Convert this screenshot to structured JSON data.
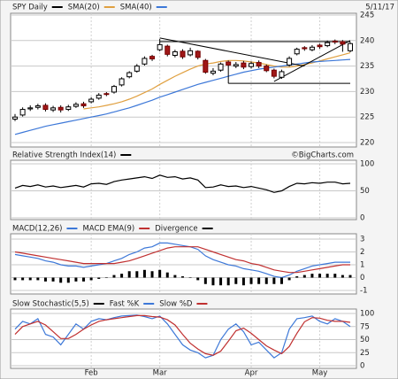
{
  "chart_data": [
    {
      "type": "candlestick",
      "title": "SPY Daily",
      "date": "5/11/17",
      "open": [
        224.6,
        225.4,
        226.6,
        226.9,
        227.3,
        226.4,
        226.9,
        226.5,
        227.1,
        227.6,
        228.0,
        228.7,
        229.6,
        229.9,
        231.3,
        232.9,
        234.0,
        235.4,
        236.9,
        238.2,
        238.9,
        237.1,
        237.9,
        237.2,
        237.9,
        236.1,
        233.6,
        234.2,
        235.8,
        235.0,
        235.6,
        234.9,
        235.7,
        235.0,
        234.2,
        232.8,
        235.2,
        237.4,
        238.6,
        238.2,
        239.1,
        239.0,
        239.9,
        239.8,
        238.0
      ],
      "high": [
        225.6,
        226.9,
        227.3,
        227.6,
        227.7,
        227.2,
        227.3,
        227.4,
        227.9,
        228.0,
        228.9,
        229.7,
        229.9,
        231.3,
        232.8,
        234.0,
        235.4,
        236.9,
        237.2,
        240.3,
        239.2,
        238.2,
        238.3,
        238.6,
        238.1,
        236.4,
        234.6,
        235.7,
        236.1,
        235.8,
        236.0,
        235.9,
        236.1,
        235.3,
        234.5,
        234.3,
        236.9,
        238.6,
        238.9,
        239.1,
        239.4,
        240.0,
        240.2,
        240.1,
        239.7
      ],
      "low": [
        224.2,
        225.1,
        226.2,
        226.5,
        226.1,
        226.0,
        225.9,
        226.2,
        226.8,
        226.8,
        227.7,
        228.4,
        229.1,
        229.6,
        231.0,
        232.6,
        233.7,
        235.1,
        236.0,
        237.9,
        236.9,
        236.7,
        236.4,
        236.9,
        236.3,
        233.5,
        233.2,
        233.9,
        231.6,
        234.6,
        234.4,
        234.5,
        234.6,
        233.8,
        232.6,
        232.5,
        234.9,
        237.1,
        238.0,
        237.9,
        238.4,
        238.7,
        239.3,
        237.8,
        237.7
      ],
      "close": [
        225.0,
        226.5,
        226.8,
        227.2,
        226.5,
        226.8,
        226.4,
        227.0,
        227.5,
        227.2,
        228.5,
        229.3,
        229.5,
        231.0,
        232.5,
        233.7,
        235.0,
        236.5,
        236.4,
        239.2,
        237.3,
        237.8,
        236.8,
        238.0,
        236.7,
        233.8,
        234.0,
        235.4,
        235.2,
        235.3,
        234.8,
        235.5,
        235.0,
        234.1,
        233.0,
        233.9,
        236.5,
        238.3,
        238.4,
        238.7,
        238.8,
        239.6,
        239.7,
        239.3,
        239.4
      ],
      "series": [
        {
          "name": "SMA(20)",
          "color": "#e0a040",
          "values": [
            null,
            null,
            null,
            null,
            null,
            null,
            null,
            null,
            null,
            226.6,
            226.8,
            227.0,
            227.3,
            227.6,
            228.0,
            228.5,
            229.1,
            229.8,
            230.5,
            231.4,
            232.2,
            233.0,
            233.7,
            234.4,
            235.0,
            235.4,
            235.6,
            235.9,
            236.1,
            236.1,
            236.0,
            235.8,
            235.6,
            235.3,
            235.0,
            234.8,
            234.8,
            235.0,
            235.3,
            235.6,
            236.0,
            236.4,
            236.8,
            237.2,
            237.6
          ]
        },
        {
          "name": "SMA(40)",
          "color": "#3d78d8",
          "values": [
            221.6,
            222.0,
            222.4,
            222.8,
            223.2,
            223.5,
            223.8,
            224.1,
            224.4,
            224.7,
            225.0,
            225.3,
            225.6,
            226.0,
            226.4,
            226.8,
            227.3,
            227.8,
            228.3,
            228.9,
            229.4,
            229.9,
            230.4,
            230.9,
            231.4,
            231.8,
            232.2,
            232.6,
            233.0,
            233.4,
            233.8,
            234.1,
            234.4,
            234.6,
            234.8,
            235.0,
            235.2,
            235.4,
            235.6,
            235.8,
            235.9,
            236.0,
            236.1,
            236.2,
            236.3
          ]
        }
      ],
      "trendlines": [
        {
          "x": [
            19,
            44
          ],
          "y": [
            239.8,
            239.8
          ]
        },
        {
          "x": [
            19,
            38
          ],
          "y": [
            240.5,
            235.0
          ]
        },
        {
          "x": [
            34,
            44
          ],
          "y": [
            232.0,
            240.0
          ]
        },
        {
          "x": [
            28,
            44
          ],
          "y": [
            231.6,
            231.6
          ]
        }
      ],
      "ylim": [
        220,
        245
      ],
      "yticks": [
        220,
        225,
        230,
        235,
        240,
        245
      ],
      "grid": true
    },
    {
      "type": "line",
      "title": "Relative Strength Index(14)",
      "credit": "©BigCharts.com",
      "color": "#000000",
      "values": [
        55,
        60,
        58,
        61,
        57,
        59,
        56,
        58,
        60,
        57,
        63,
        64,
        62,
        67,
        70,
        72,
        74,
        76,
        73,
        79,
        75,
        76,
        72,
        74,
        70,
        56,
        57,
        61,
        58,
        59,
        56,
        58,
        55,
        52,
        47,
        50,
        58,
        64,
        63,
        65,
        64,
        66,
        66,
        63,
        64
      ],
      "ylim": [
        0,
        100
      ],
      "yticks": [
        0,
        50,
        100
      ],
      "grid": true
    },
    {
      "type": "macd",
      "series": [
        {
          "name": "MACD(12,26)",
          "color": "#3d78d8",
          "values": [
            1.8,
            1.7,
            1.6,
            1.5,
            1.3,
            1.2,
            1.0,
            0.9,
            0.9,
            0.8,
            0.9,
            1.0,
            1.1,
            1.3,
            1.5,
            1.8,
            2.0,
            2.3,
            2.4,
            2.7,
            2.7,
            2.6,
            2.5,
            2.4,
            2.2,
            1.7,
            1.4,
            1.2,
            1.0,
            0.9,
            0.7,
            0.6,
            0.5,
            0.3,
            0.1,
            0.0,
            0.2,
            0.5,
            0.7,
            0.9,
            1.0,
            1.1,
            1.2,
            1.2,
            1.2
          ]
        },
        {
          "name": "MACD EMA(9)",
          "color": "#c03030",
          "values": [
            2.0,
            1.9,
            1.8,
            1.7,
            1.6,
            1.5,
            1.4,
            1.3,
            1.2,
            1.1,
            1.1,
            1.1,
            1.1,
            1.1,
            1.2,
            1.3,
            1.5,
            1.7,
            1.9,
            2.1,
            2.3,
            2.4,
            2.4,
            2.4,
            2.4,
            2.2,
            2.0,
            1.8,
            1.6,
            1.4,
            1.3,
            1.1,
            1.0,
            0.8,
            0.6,
            0.5,
            0.4,
            0.4,
            0.5,
            0.6,
            0.7,
            0.8,
            0.9,
            1.0,
            1.0
          ]
        },
        {
          "name": "Divergence",
          "color": "#000000",
          "style": "bar",
          "values": [
            -0.2,
            -0.2,
            -0.2,
            -0.2,
            -0.3,
            -0.3,
            -0.4,
            -0.4,
            -0.3,
            -0.3,
            -0.2,
            -0.1,
            0,
            0.2,
            0.3,
            0.5,
            0.5,
            0.6,
            0.5,
            0.6,
            0.4,
            0.2,
            0.1,
            0,
            -0.2,
            -0.5,
            -0.6,
            -0.6,
            -0.6,
            -0.5,
            -0.6,
            -0.5,
            -0.5,
            -0.5,
            -0.5,
            -0.5,
            -0.2,
            0.1,
            0.2,
            0.3,
            0.3,
            0.3,
            0.3,
            0.2,
            0.2
          ]
        }
      ],
      "ylim": [
        -1,
        3
      ],
      "yticks": [
        -1,
        0,
        1,
        2,
        3
      ],
      "grid": true
    },
    {
      "type": "line",
      "title": "Slow Stochastic(5,5)",
      "categories": [
        null,
        null,
        null,
        null,
        null,
        null,
        null,
        null,
        null,
        null,
        "Feb",
        null,
        null,
        null,
        null,
        null,
        null,
        null,
        null,
        "Mar",
        null,
        null,
        null,
        null,
        null,
        null,
        null,
        null,
        null,
        null,
        null,
        "Apr",
        null,
        null,
        null,
        null,
        null,
        null,
        null,
        null,
        "May",
        null,
        null,
        null,
        null
      ],
      "series": [
        {
          "name": "Fast %K",
          "color": "#3d78d8",
          "values": [
            70,
            85,
            80,
            90,
            60,
            55,
            40,
            60,
            80,
            70,
            85,
            90,
            88,
            92,
            95,
            96,
            97,
            94,
            90,
            95,
            80,
            60,
            40,
            30,
            25,
            15,
            20,
            50,
            70,
            80,
            65,
            40,
            45,
            30,
            15,
            25,
            70,
            90,
            92,
            95,
            85,
            80,
            90,
            85,
            75
          ]
        },
        {
          "name": "Slow %D",
          "color": "#c03030",
          "values": [
            60,
            75,
            80,
            85,
            78,
            65,
            52,
            52,
            60,
            70,
            78,
            85,
            88,
            90,
            92,
            94,
            96,
            96,
            94,
            93,
            88,
            78,
            60,
            43,
            32,
            23,
            20,
            28,
            47,
            67,
            72,
            62,
            50,
            38,
            30,
            23,
            37,
            62,
            84,
            92,
            91,
            87,
            85,
            85,
            83
          ]
        }
      ],
      "ylim": [
        0,
        100
      ],
      "yticks": [
        0,
        25,
        50,
        75,
        100
      ],
      "grid": true
    }
  ]
}
